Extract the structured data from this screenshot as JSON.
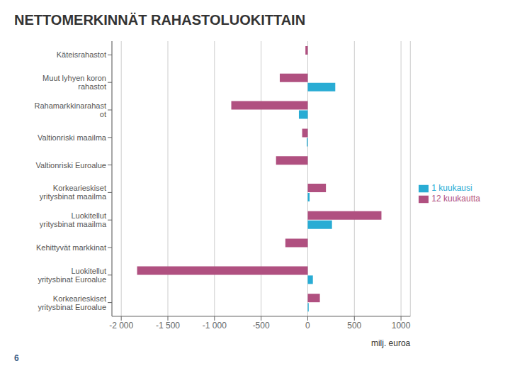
{
  "chart_data": {
    "type": "bar",
    "orientation": "horizontal",
    "title": "NETTOMERKINNÄT RAHASTOLUOKITTAIN",
    "x_label": "milj. euroa",
    "categories": [
      "Käteisrahastot",
      "Muut lyhyen koron\nrahastot",
      "Rahamarkkinarahast\not",
      "Valtionriski maailma",
      "Valtionriski Euroalue",
      "Korkearieskiset\nyritysbinat maailma",
      "Luokitellut\nyritysbinat maailma",
      "Kehittyvät markkinat",
      "Luokitellut\nyritysbinat Euroalue",
      "Korkearieskiset\nyritysbinat Euroalue"
    ],
    "series": [
      {
        "name": "12 kuukautta",
        "color": "#b05080",
        "values": [
          -25,
          -300,
          -820,
          -60,
          -340,
          195,
          790,
          -240,
          -1830,
          130
        ]
      },
      {
        "name": "1 kuukausi",
        "color": "#29acd4",
        "values": [
          0,
          295,
          -95,
          -10,
          0,
          20,
          260,
          0,
          55,
          10
        ]
      }
    ],
    "xlim": [
      -2100,
      1100
    ],
    "xticks": [
      {
        "value": -2000,
        "label": "-2 000"
      },
      {
        "value": -1500,
        "label": "-1 500"
      },
      {
        "value": -1000,
        "label": "-1 000"
      },
      -500,
      0,
      500,
      1000
    ],
    "grid": true,
    "legend": "right",
    "annotations": [
      "6"
    ]
  }
}
